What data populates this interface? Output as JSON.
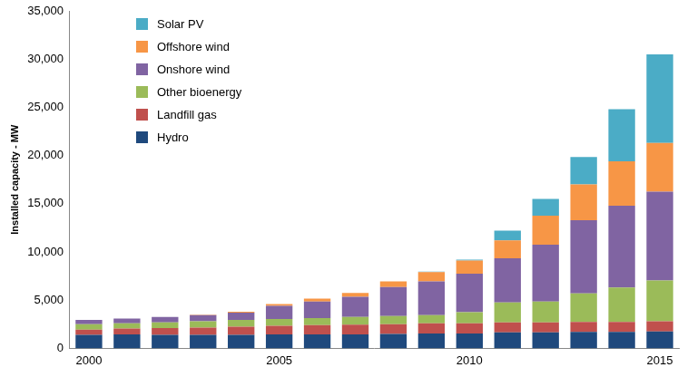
{
  "chart_data": {
    "type": "bar",
    "stacked": true,
    "grid": false,
    "legend": "top-left",
    "y_label": "Installed capacity - MW",
    "categories": [
      "2000",
      null,
      null,
      null,
      null,
      "2005",
      null,
      null,
      null,
      null,
      "2010",
      null,
      null,
      null,
      null,
      "2015"
    ],
    "ylim": [
      0,
      35000
    ],
    "yticks": [
      0,
      {
        "value": 5000,
        "label": "5,000"
      },
      {
        "value": 10000,
        "label": "10,000"
      },
      {
        "value": 15000,
        "label": "15,000"
      },
      {
        "value": 20000,
        "label": "20,000"
      },
      {
        "value": 25000,
        "label": "25,000"
      },
      {
        "value": 30000,
        "label": "30,000"
      },
      {
        "value": 35000,
        "label": "35,000"
      }
    ],
    "series": [
      {
        "name": "Hydro",
        "color": "#1f497d",
        "values": [
          1400,
          1450,
          1400,
          1400,
          1400,
          1450,
          1450,
          1450,
          1500,
          1550,
          1550,
          1650,
          1650,
          1700,
          1700,
          1750
        ]
      },
      {
        "name": "Landfill gas",
        "color": "#c0504d",
        "values": [
          550,
          600,
          700,
          750,
          850,
          900,
          950,
          1000,
          1000,
          1050,
          1050,
          1050,
          1050,
          1050,
          1050,
          1050
        ]
      },
      {
        "name": "Other bioenergy",
        "color": "#9bbb59",
        "values": [
          550,
          550,
          600,
          650,
          700,
          700,
          750,
          800,
          850,
          850,
          1150,
          2050,
          2150,
          2950,
          3550,
          4250
        ]
      },
      {
        "name": "Onshore wind",
        "color": "#8064a2",
        "values": [
          450,
          500,
          550,
          650,
          750,
          1350,
          1700,
          2100,
          3000,
          3500,
          4000,
          4600,
          5900,
          7600,
          8500,
          9200
        ]
      },
      {
        "name": "Offshore wind",
        "color": "#f79646",
        "values": [
          0,
          0,
          0,
          50,
          100,
          200,
          300,
          400,
          600,
          950,
          1350,
          1850,
          3000,
          3700,
          4600,
          5050
        ]
      },
      {
        "name": "Solar PV",
        "color": "#4bacc6",
        "values": [
          0,
          0,
          0,
          0,
          0,
          0,
          0,
          0,
          0,
          50,
          100,
          1000,
          1750,
          2850,
          5400,
          9200
        ]
      }
    ]
  }
}
